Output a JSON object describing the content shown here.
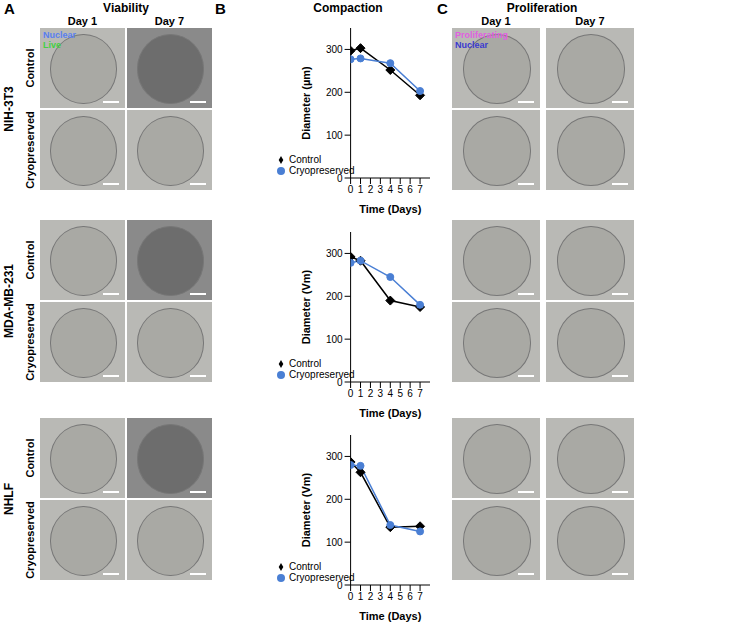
{
  "figure": {
    "panels": [
      {
        "letter": "A",
        "title": "Viability",
        "columns": [
          "Day 1",
          "Day 7"
        ],
        "stain_labels": [
          {
            "text": "Nuclear",
            "color": "#5a7ff0"
          },
          {
            "text": "Live",
            "color": "#44d044"
          }
        ]
      },
      {
        "letter": "B",
        "title": "Compaction"
      },
      {
        "letter": "C",
        "title": "Proliferation",
        "columns": [
          "Day 1",
          "Day 7"
        ],
        "stain_labels": [
          {
            "text": "Proliferating",
            "color": "#e060e0"
          },
          {
            "text": "Nuclear",
            "color": "#3a3ad0"
          }
        ]
      }
    ],
    "cell_lines": [
      {
        "name": "NIH-3T3",
        "conditions": [
          "Control",
          "Cryopreserved"
        ]
      },
      {
        "name": "MDA-MB-231",
        "conditions": [
          "Control",
          "Cryopreserved"
        ]
      },
      {
        "name": "NHLF",
        "conditions": [
          "Control",
          "Cryopreserved"
        ]
      }
    ]
  },
  "chart_data": [
    {
      "type": "line",
      "x_label": "Time (Days)",
      "y_label": "Diameter (µm)",
      "x": [
        0,
        1,
        4,
        7
      ],
      "xlim": [
        0,
        8
      ],
      "xticks": [
        0,
        1,
        2,
        3,
        4,
        5,
        6,
        7
      ],
      "ylim": [
        0,
        350
      ],
      "yticks": [
        0,
        100,
        200,
        300
      ],
      "legend": "lower left",
      "series": [
        {
          "name": "Control",
          "color": "#000000",
          "marker": "diamond",
          "values": [
            297,
            303,
            252,
            193
          ]
        },
        {
          "name": "Cryopreserved",
          "color": "#4a7fd4",
          "marker": "circle",
          "values": [
            277,
            279,
            268,
            203
          ]
        }
      ]
    },
    {
      "type": "line",
      "x_label": "Time (Days)",
      "y_label": "Diameter (Vm)",
      "x": [
        0,
        1,
        4,
        7
      ],
      "xlim": [
        0,
        8
      ],
      "xticks": [
        0,
        1,
        2,
        3,
        4,
        5,
        6,
        7
      ],
      "ylim": [
        0,
        350
      ],
      "yticks": [
        0,
        100,
        200,
        300
      ],
      "legend": "lower left",
      "series": [
        {
          "name": "Control",
          "color": "#000000",
          "marker": "diamond",
          "values": [
            292,
            283,
            190,
            175
          ]
        },
        {
          "name": "Cryopreserved",
          "color": "#4a7fd4",
          "marker": "circle",
          "values": [
            278,
            283,
            245,
            180
          ]
        }
      ]
    },
    {
      "type": "line",
      "x_label": "Time (Days)",
      "y_label": "Diameter (Vm)",
      "x": [
        0,
        1,
        4,
        7
      ],
      "xlim": [
        0,
        8
      ],
      "xticks": [
        0,
        1,
        2,
        3,
        4,
        5,
        6,
        7
      ],
      "ylim": [
        0,
        350
      ],
      "yticks": [
        0,
        100,
        200,
        300
      ],
      "legend": "lower left",
      "series": [
        {
          "name": "Control",
          "color": "#000000",
          "marker": "diamond",
          "values": [
            287,
            263,
            135,
            137
          ]
        },
        {
          "name": "Cryopreserved",
          "color": "#4a7fd4",
          "marker": "circle",
          "values": [
            280,
            278,
            140,
            125
          ]
        }
      ]
    }
  ]
}
